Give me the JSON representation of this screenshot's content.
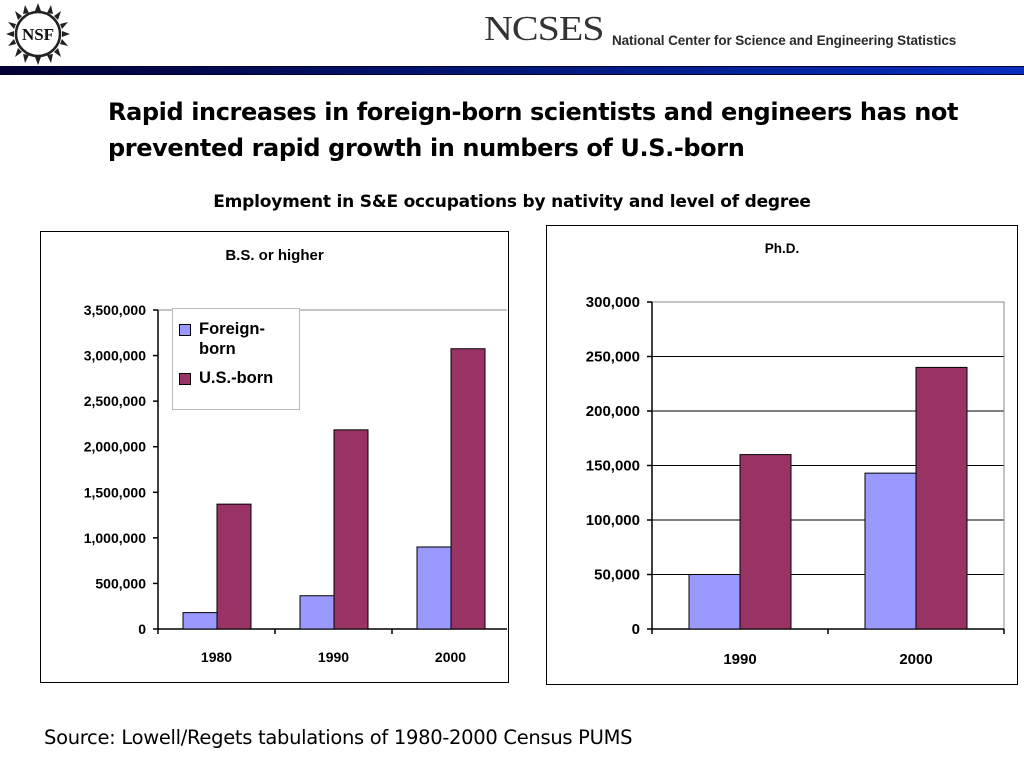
{
  "header": {
    "nsf_logo_text": "NSF",
    "org_short": "NCSES",
    "org_full": "National Center for Science and Engineering Statistics"
  },
  "headline": "Rapid increases in foreign-born scientists and engineers has not prevented rapid growth in  numbers of U.S.-born",
  "subtitle": "Employment in S&E occupations by nativity and level of degree",
  "source": "Source: Lowell/Regets tabulations of 1980-2000 Census PUMS",
  "colors": {
    "foreign_born": "#9999ff",
    "us_born": "#993366",
    "header_band": "#000033"
  },
  "chart_data": [
    {
      "type": "bar",
      "title": "B.S. or higher",
      "categories": [
        "1980",
        "1990",
        "2000"
      ],
      "series": [
        {
          "name": "Foreign-born",
          "values": [
            180000,
            365000,
            900000
          ]
        },
        {
          "name": "U.S.-born",
          "values": [
            1370000,
            2185000,
            3075000
          ]
        }
      ],
      "ylim": [
        0,
        3500000
      ],
      "yticks": [
        0,
        500000,
        1000000,
        1500000,
        2000000,
        2500000,
        3000000,
        3500000
      ],
      "ytick_labels": [
        "0",
        "500,000",
        "1,000,000",
        "1,500,000",
        "2,000,000",
        "2,500,000",
        "3,000,000",
        "3,500,000"
      ],
      "grid": false,
      "legend": "top-left"
    },
    {
      "type": "bar",
      "title": "Ph.D.",
      "categories": [
        "1990",
        "2000"
      ],
      "series": [
        {
          "name": "Foreign-born",
          "values": [
            50000,
            143000
          ]
        },
        {
          "name": "U.S.-born",
          "values": [
            160000,
            240000
          ]
        }
      ],
      "ylim": [
        0,
        300000
      ],
      "yticks": [
        0,
        50000,
        100000,
        150000,
        200000,
        250000,
        300000
      ],
      "ytick_labels": [
        "0",
        "50,000",
        "100,000",
        "150,000",
        "200,000",
        "250,000",
        "300,000"
      ],
      "grid": true,
      "legend": "none"
    }
  ]
}
